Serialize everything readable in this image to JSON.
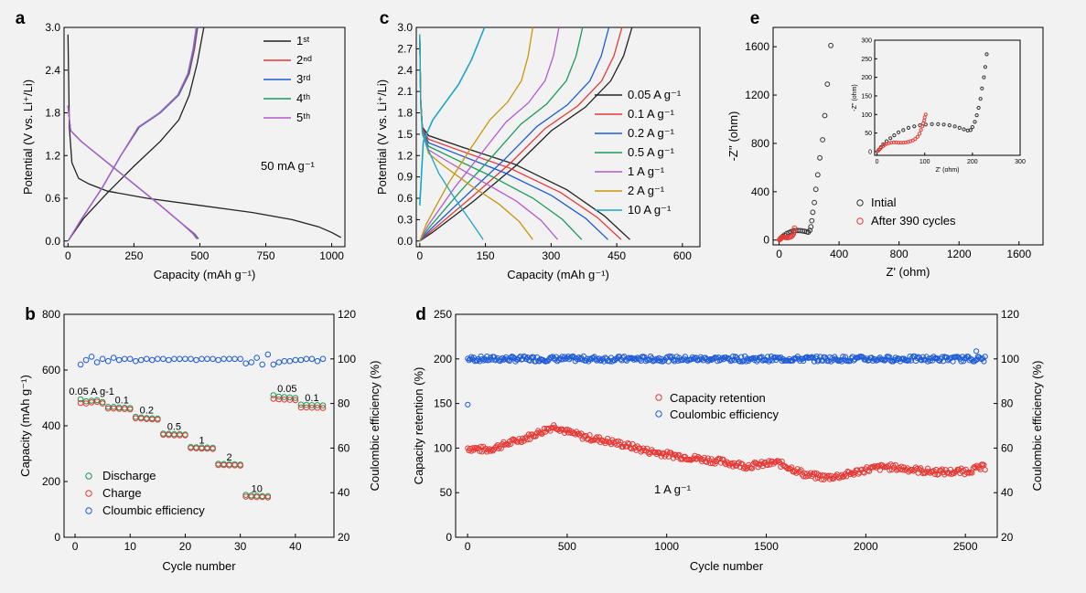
{
  "chart_data": [
    {
      "id": "a",
      "type": "line",
      "panel_label": "a",
      "xlabel": "Capacity (mAh g⁻¹)",
      "ylabel": "Potential (V vs. Li⁺/Li)",
      "xlim": [
        -15,
        1050
      ],
      "ylim": [
        -0.08,
        3.0
      ],
      "xticks": [
        "0",
        "250",
        "500",
        "750",
        "1000"
      ],
      "yticks": [
        "0.0",
        "0.6",
        "1.2",
        "1.8",
        "2.4",
        "3.0"
      ],
      "annotation": "50 mA g⁻¹",
      "legend": [
        "1ˢᵗ",
        "2ⁿᵈ",
        "3ʳᵈ",
        "4ᵗʰ",
        "5ᵗʰ"
      ],
      "colors": [
        "#222222",
        "#e53935",
        "#1e5bd6",
        "#1a9a5a",
        "#b25bd0"
      ],
      "series": [
        {
          "name": "1ˢᵗ",
          "discharge": [
            [
              0,
              2.9
            ],
            [
              5,
              1.6
            ],
            [
              15,
              1.1
            ],
            [
              40,
              0.88
            ],
            [
              80,
              0.8
            ],
            [
              150,
              0.7
            ],
            [
              300,
              0.6
            ],
            [
              500,
              0.5
            ],
            [
              700,
              0.4
            ],
            [
              850,
              0.3
            ],
            [
              950,
              0.2
            ],
            [
              1000,
              0.12
            ],
            [
              1035,
              0.05
            ]
          ],
          "charge": [
            [
              0,
              0.0
            ],
            [
              60,
              0.32
            ],
            [
              150,
              0.68
            ],
            [
              250,
              1.05
            ],
            [
              350,
              1.4
            ],
            [
              420,
              1.7
            ],
            [
              460,
              2.05
            ],
            [
              490,
              2.5
            ],
            [
              505,
              2.8
            ],
            [
              515,
              3.0
            ]
          ]
        },
        {
          "name": "2ⁿᵈ",
          "discharge": [
            [
              0,
              1.9
            ],
            [
              10,
              1.55
            ],
            [
              50,
              1.4
            ],
            [
              150,
              1.1
            ],
            [
              250,
              0.8
            ],
            [
              350,
              0.5
            ],
            [
              430,
              0.25
            ],
            [
              480,
              0.1
            ],
            [
              495,
              0.03
            ]
          ],
          "charge": [
            [
              0,
              0.0
            ],
            [
              50,
              0.3
            ],
            [
              130,
              0.75
            ],
            [
              200,
              1.2
            ],
            [
              270,
              1.6
            ],
            [
              350,
              1.8
            ],
            [
              420,
              2.05
            ],
            [
              460,
              2.35
            ],
            [
              480,
              2.7
            ],
            [
              492,
              3.0
            ]
          ]
        },
        {
          "name": "3ʳᵈ",
          "discharge": [
            [
              0,
              1.9
            ],
            [
              10,
              1.55
            ],
            [
              50,
              1.4
            ],
            [
              150,
              1.1
            ],
            [
              250,
              0.8
            ],
            [
              350,
              0.5
            ],
            [
              430,
              0.25
            ],
            [
              478,
              0.1
            ],
            [
              492,
              0.03
            ]
          ],
          "charge": [
            [
              0,
              0.0
            ],
            [
              50,
              0.3
            ],
            [
              130,
              0.75
            ],
            [
              200,
              1.2
            ],
            [
              270,
              1.6
            ],
            [
              350,
              1.8
            ],
            [
              420,
              2.05
            ],
            [
              458,
              2.35
            ],
            [
              478,
              2.7
            ],
            [
              490,
              3.0
            ]
          ]
        },
        {
          "name": "4ᵗʰ",
          "discharge": [
            [
              0,
              1.9
            ],
            [
              10,
              1.55
            ],
            [
              50,
              1.4
            ],
            [
              150,
              1.1
            ],
            [
              250,
              0.8
            ],
            [
              350,
              0.5
            ],
            [
              430,
              0.25
            ],
            [
              476,
              0.1
            ],
            [
              490,
              0.03
            ]
          ],
          "charge": [
            [
              0,
              0.0
            ],
            [
              50,
              0.3
            ],
            [
              130,
              0.75
            ],
            [
              200,
              1.2
            ],
            [
              268,
              1.6
            ],
            [
              348,
              1.8
            ],
            [
              418,
              2.05
            ],
            [
              456,
              2.35
            ],
            [
              476,
              2.7
            ],
            [
              488,
              3.0
            ]
          ]
        },
        {
          "name": "5ᵗʰ",
          "discharge": [
            [
              0,
              1.9
            ],
            [
              10,
              1.55
            ],
            [
              50,
              1.4
            ],
            [
              150,
              1.1
            ],
            [
              250,
              0.8
            ],
            [
              350,
              0.5
            ],
            [
              430,
              0.25
            ],
            [
              474,
              0.1
            ],
            [
              488,
              0.03
            ]
          ],
          "charge": [
            [
              0,
              0.0
            ],
            [
              50,
              0.3
            ],
            [
              130,
              0.75
            ],
            [
              200,
              1.2
            ],
            [
              266,
              1.6
            ],
            [
              346,
              1.8
            ],
            [
              416,
              2.05
            ],
            [
              454,
              2.35
            ],
            [
              474,
              2.7
            ],
            [
              486,
              3.0
            ]
          ]
        }
      ]
    },
    {
      "id": "b",
      "type": "scatter",
      "panel_label": "b",
      "xlabel": "Cycle number",
      "ylabel": "Capacity (mAh g⁻¹)",
      "ylabel_right": "Coulombic efficiency (%)",
      "xlim": [
        -2,
        47
      ],
      "ylim": [
        0,
        800
      ],
      "ylim_right": [
        20,
        120
      ],
      "xticks": [
        "0",
        "10",
        "20",
        "30",
        "40"
      ],
      "yticks": [
        "0",
        "200",
        "400",
        "600",
        "800"
      ],
      "yticks_right": [
        "20",
        "40",
        "60",
        "80",
        "100",
        "120"
      ],
      "legend": [
        "Discharge",
        "Charge",
        "Cloumbic efficiency"
      ],
      "colors": {
        "discharge": "#1a9a5a",
        "charge": "#e53935",
        "efficiency": "#1e5bd6"
      },
      "rate_labels": [
        {
          "text": "0.05 A g-1",
          "x": 3,
          "y": 512
        },
        {
          "text": "0.1",
          "x": 8.5,
          "y": 480
        },
        {
          "text": "0.2",
          "x": 13,
          "y": 445
        },
        {
          "text": "0.5",
          "x": 18,
          "y": 385
        },
        {
          "text": "1",
          "x": 23,
          "y": 336
        },
        {
          "text": "2",
          "x": 28,
          "y": 276
        },
        {
          "text": "10",
          "x": 33,
          "y": 162
        },
        {
          "text": "0.05",
          "x": 38.5,
          "y": 522
        },
        {
          "text": "0.1",
          "x": 43,
          "y": 488
        }
      ],
      "cycle": [
        1,
        2,
        3,
        4,
        5,
        6,
        7,
        8,
        9,
        10,
        11,
        12,
        13,
        14,
        15,
        16,
        17,
        18,
        19,
        20,
        21,
        22,
        23,
        24,
        25,
        26,
        27,
        28,
        29,
        30,
        31,
        32,
        33,
        34,
        35,
        36,
        37,
        38,
        39,
        40,
        41,
        42,
        43,
        44,
        45
      ],
      "discharge": [
        495,
        488,
        490,
        492,
        485,
        468,
        468,
        466,
        465,
        464,
        432,
        430,
        428,
        427,
        426,
        372,
        371,
        370,
        370,
        369,
        324,
        323,
        322,
        322,
        321,
        264,
        263,
        262,
        262,
        261,
        152,
        150,
        149,
        148,
        148,
        510,
        505,
        503,
        502,
        500,
        476,
        475,
        474,
        474,
        473
      ],
      "charge": [
        482,
        480,
        484,
        486,
        480,
        462,
        462,
        461,
        460,
        459,
        427,
        426,
        424,
        423,
        422,
        368,
        367,
        366,
        366,
        366,
        320,
        319,
        318,
        318,
        317,
        259,
        259,
        258,
        258,
        257,
        146,
        145,
        144,
        144,
        143,
        497,
        495,
        494,
        493,
        492,
        466,
        466,
        465,
        465,
        464
      ],
      "efficiency": [
        97.5,
        99.5,
        101,
        98.5,
        100,
        99,
        100.5,
        99.5,
        100,
        100,
        99,
        99.5,
        100,
        99.5,
        100,
        100,
        99.5,
        100,
        100,
        100,
        100,
        99.5,
        100,
        100,
        100,
        99.5,
        100,
        100,
        100,
        100,
        98,
        98.5,
        100.5,
        97.5,
        102,
        97.5,
        98.5,
        99,
        99,
        99.5,
        99.5,
        100,
        100,
        99,
        100
      ]
    },
    {
      "id": "c",
      "type": "line",
      "panel_label": "c",
      "xlabel": "Capacity (mAh g⁻¹)",
      "ylabel": "Potential (V vs. Li⁺/Li)",
      "xlim": [
        -8,
        640
      ],
      "ylim": [
        -0.08,
        3.0
      ],
      "xticks": [
        "0",
        "150",
        "300",
        "450",
        "600"
      ],
      "yticks": [
        "0.0",
        "0.3",
        "0.6",
        "0.9",
        "1.2",
        "1.5",
        "1.8",
        "2.1",
        "2.4",
        "2.7",
        "3.0"
      ],
      "legend": [
        "0.05 A g⁻¹",
        "0.1 A g⁻¹",
        "0.2 A g⁻¹",
        "0.5 A g⁻¹",
        "1 A g⁻¹",
        "2 A g⁻¹",
        "10 A g⁻¹"
      ],
      "colors": [
        "#222222",
        "#e53935",
        "#1e5bd6",
        "#1a9a5a",
        "#b25bd0",
        "#c8960c",
        "#19a7c4"
      ],
      "series": [
        {
          "name": "0.05 A g⁻¹",
          "capacity": 480,
          "charge_end": 485
        },
        {
          "name": "0.1 A g⁻¹",
          "capacity": 460,
          "charge_end": 462
        },
        {
          "name": "0.2 A g⁻¹",
          "capacity": 430,
          "charge_end": 432
        },
        {
          "name": "0.5 A g⁻¹",
          "capacity": 370,
          "charge_end": 372
        },
        {
          "name": "1 A g⁻¹",
          "capacity": 315,
          "charge_end": 318
        },
        {
          "name": "2 A g⁻¹",
          "capacity": 258,
          "charge_end": 258
        },
        {
          "name": "10 A g⁻¹",
          "capacity": 145,
          "charge_end": 148
        }
      ]
    },
    {
      "id": "d",
      "type": "scatter",
      "panel_label": "d",
      "xlabel": "Cycle number",
      "ylabel": "Capacity retention (%)",
      "ylabel_right": "Coulombic efficiency (%)",
      "xlim": [
        -60,
        2660
      ],
      "ylim": [
        0,
        250
      ],
      "ylim_right": [
        20,
        120
      ],
      "xticks": [
        "0",
        "500",
        "1000",
        "1500",
        "2000",
        "2500"
      ],
      "yticks": [
        "0",
        "50",
        "100",
        "150",
        "200",
        "250"
      ],
      "yticks_right": [
        "20",
        "40",
        "60",
        "80",
        "100",
        "120"
      ],
      "annotation": "1 A g⁻¹",
      "legend": [
        "Capacity retention",
        "Coulombic efficiency"
      ],
      "colors": {
        "retention": "#e53935",
        "efficiency": "#1e5bd6"
      },
      "retention_profile": [
        [
          0,
          100
        ],
        [
          100,
          98
        ],
        [
          200,
          105
        ],
        [
          300,
          112
        ],
        [
          440,
          125
        ],
        [
          500,
          118
        ],
        [
          600,
          112
        ],
        [
          700,
          108
        ],
        [
          800,
          103
        ],
        [
          900,
          97
        ],
        [
          1000,
          93
        ],
        [
          1100,
          90
        ],
        [
          1200,
          87
        ],
        [
          1300,
          84
        ],
        [
          1400,
          80
        ],
        [
          1500,
          82
        ],
        [
          1550,
          84
        ],
        [
          1600,
          80
        ],
        [
          1700,
          70
        ],
        [
          1800,
          67
        ],
        [
          1900,
          70
        ],
        [
          2000,
          76
        ],
        [
          2100,
          79
        ],
        [
          2200,
          77
        ],
        [
          2300,
          74
        ],
        [
          2400,
          73
        ],
        [
          2500,
          74
        ],
        [
          2600,
          79
        ]
      ],
      "efficiency_mean": 100,
      "efficiency_first_cycle": 79.5
    },
    {
      "id": "e",
      "type": "scatter",
      "panel_label": "e",
      "xlabel": "Z' (ohm)",
      "ylabel": "-Z'' (ohm)",
      "xlim": [
        -40,
        1760
      ],
      "ylim": [
        -40,
        1760
      ],
      "xticks": [
        "0",
        "400",
        "800",
        "1200",
        "1600"
      ],
      "yticks": [
        "0",
        "400",
        "800",
        "1200",
        "1600"
      ],
      "legend": [
        "Intial",
        "After 390 cycles"
      ],
      "colors": {
        "initial": "#333333",
        "after": "#e53935"
      },
      "initial": [
        [
          8,
          8
        ],
        [
          15,
          20
        ],
        [
          25,
          30
        ],
        [
          35,
          40
        ],
        [
          50,
          52
        ],
        [
          65,
          62
        ],
        [
          80,
          70
        ],
        [
          95,
          75
        ],
        [
          110,
          78
        ],
        [
          125,
          79
        ],
        [
          140,
          78
        ],
        [
          155,
          76
        ],
        [
          170,
          72
        ],
        [
          185,
          68
        ],
        [
          195,
          65
        ],
        [
          205,
          80
        ],
        [
          212,
          110
        ],
        [
          218,
          160
        ],
        [
          225,
          230
        ],
        [
          235,
          310
        ],
        [
          245,
          420
        ],
        [
          258,
          540
        ],
        [
          272,
          680
        ],
        [
          290,
          830
        ],
        [
          305,
          1030
        ],
        [
          322,
          1290
        ],
        [
          345,
          1610
        ]
      ],
      "after": [
        [
          3,
          3
        ],
        [
          6,
          8
        ],
        [
          10,
          12
        ],
        [
          15,
          18
        ],
        [
          20,
          22
        ],
        [
          26,
          25
        ],
        [
          33,
          24
        ],
        [
          40,
          22
        ],
        [
          48,
          20
        ],
        [
          56,
          20
        ],
        [
          64,
          22
        ],
        [
          72,
          24
        ],
        [
          80,
          28
        ],
        [
          88,
          36
        ],
        [
          94,
          48
        ],
        [
          98,
          62
        ],
        [
          101,
          80
        ],
        [
          103,
          100
        ]
      ],
      "inset": {
        "xlabel": "Z' (ohm)",
        "ylabel": "-Z'' (ohm)",
        "xlim": [
          -5,
          300
        ],
        "ylim": [
          -10,
          300
        ],
        "xticks": [
          "0",
          "100",
          "200",
          "300"
        ],
        "yticks": [
          "0",
          "50",
          "100",
          "150",
          "200",
          "250",
          "300"
        ]
      }
    }
  ]
}
